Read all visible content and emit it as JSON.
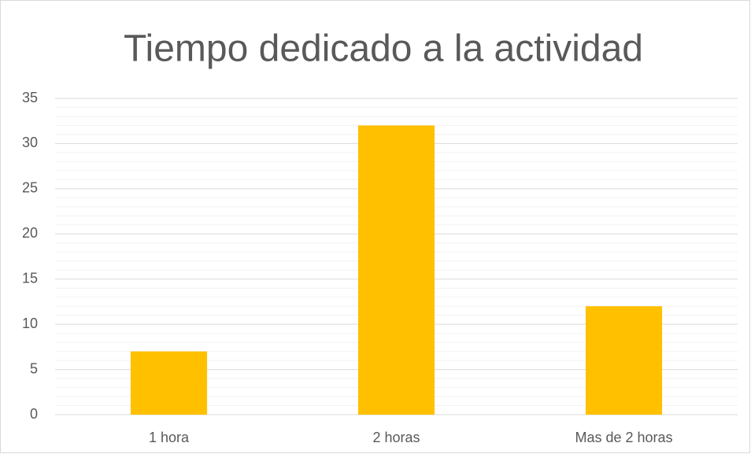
{
  "chart_data": {
    "type": "bar",
    "title": "Tiempo dedicado a la actividad",
    "categories": [
      "1 hora",
      "2 horas",
      "Mas de 2 horas"
    ],
    "values": [
      7,
      32,
      12
    ],
    "color": "#FFC000",
    "ylim": [
      0,
      35
    ],
    "yticks": [
      0,
      5,
      10,
      15,
      20,
      25,
      30,
      35
    ],
    "grid": true,
    "minor_grid": true
  }
}
